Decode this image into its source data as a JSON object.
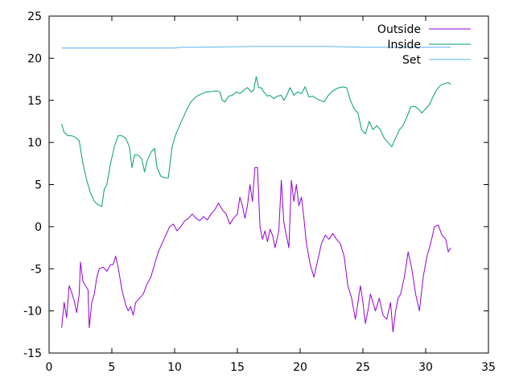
{
  "chart_data": {
    "type": "line",
    "title": "",
    "xlabel": "",
    "ylabel": "",
    "xlim": [
      0,
      35
    ],
    "ylim": [
      -15,
      25
    ],
    "xticks": [
      0,
      5,
      10,
      15,
      20,
      25,
      30,
      35
    ],
    "yticks": [
      -15,
      -10,
      -5,
      0,
      5,
      10,
      15,
      20,
      25
    ],
    "grid": false,
    "legend_position": "top-right",
    "series": [
      {
        "name": "Outside",
        "color": "#9400d3",
        "points": [
          [
            1.0,
            -12.0
          ],
          [
            1.2,
            -9.0
          ],
          [
            1.4,
            -10.8
          ],
          [
            1.6,
            -7.0
          ],
          [
            1.8,
            -7.8
          ],
          [
            2.0,
            -8.8
          ],
          [
            2.2,
            -10.2
          ],
          [
            2.4,
            -8.0
          ],
          [
            2.5,
            -4.2
          ],
          [
            2.7,
            -6.5
          ],
          [
            2.9,
            -7.0
          ],
          [
            3.1,
            -7.5
          ],
          [
            3.2,
            -12.0
          ],
          [
            3.4,
            -9.0
          ],
          [
            3.6,
            -8.0
          ],
          [
            3.8,
            -6.0
          ],
          [
            4.0,
            -5.0
          ],
          [
            4.3,
            -4.8
          ],
          [
            4.6,
            -5.3
          ],
          [
            4.9,
            -4.5
          ],
          [
            5.1,
            -4.5
          ],
          [
            5.3,
            -3.5
          ],
          [
            5.5,
            -4.8
          ],
          [
            5.8,
            -7.5
          ],
          [
            6.1,
            -9.3
          ],
          [
            6.3,
            -10.0
          ],
          [
            6.5,
            -9.5
          ],
          [
            6.7,
            -10.5
          ],
          [
            6.9,
            -9.0
          ],
          [
            7.2,
            -8.5
          ],
          [
            7.5,
            -8.0
          ],
          [
            7.8,
            -6.8
          ],
          [
            8.1,
            -6.0
          ],
          [
            8.4,
            -4.5
          ],
          [
            8.7,
            -3.0
          ],
          [
            9.0,
            -2.0
          ],
          [
            9.3,
            -1.0
          ],
          [
            9.6,
            0.0
          ],
          [
            9.9,
            0.3
          ],
          [
            10.2,
            -0.5
          ],
          [
            10.5,
            0.0
          ],
          [
            10.8,
            0.7
          ],
          [
            11.1,
            1.0
          ],
          [
            11.4,
            1.5
          ],
          [
            11.7,
            1.0
          ],
          [
            12.0,
            0.7
          ],
          [
            12.3,
            1.2
          ],
          [
            12.6,
            0.8
          ],
          [
            12.9,
            1.5
          ],
          [
            13.2,
            2.0
          ],
          [
            13.5,
            2.8
          ],
          [
            13.8,
            2.0
          ],
          [
            14.1,
            1.5
          ],
          [
            14.4,
            0.3
          ],
          [
            14.7,
            1.0
          ],
          [
            15.0,
            1.5
          ],
          [
            15.2,
            3.5
          ],
          [
            15.4,
            2.5
          ],
          [
            15.6,
            1.0
          ],
          [
            15.8,
            2.5
          ],
          [
            16.0,
            5.0
          ],
          [
            16.2,
            3.0
          ],
          [
            16.4,
            7.0
          ],
          [
            16.6,
            7.0
          ],
          [
            16.8,
            0.0
          ],
          [
            17.0,
            -1.5
          ],
          [
            17.2,
            -0.5
          ],
          [
            17.4,
            -1.8
          ],
          [
            17.6,
            -0.3
          ],
          [
            17.8,
            -1.0
          ],
          [
            18.0,
            -2.5
          ],
          [
            18.3,
            -0.5
          ],
          [
            18.5,
            5.5
          ],
          [
            18.7,
            0.5
          ],
          [
            18.9,
            -1.0
          ],
          [
            19.1,
            -2.5
          ],
          [
            19.3,
            5.5
          ],
          [
            19.5,
            3.0
          ],
          [
            19.7,
            5.0
          ],
          [
            19.9,
            2.5
          ],
          [
            20.1,
            3.5
          ],
          [
            20.3,
            1.0
          ],
          [
            20.5,
            -2.0
          ],
          [
            20.8,
            -4.5
          ],
          [
            21.1,
            -6.0
          ],
          [
            21.4,
            -4.0
          ],
          [
            21.7,
            -2.0
          ],
          [
            22.0,
            -1.0
          ],
          [
            22.3,
            -1.5
          ],
          [
            22.6,
            -0.8
          ],
          [
            22.9,
            -1.5
          ],
          [
            23.2,
            -2.0
          ],
          [
            23.5,
            -3.5
          ],
          [
            23.8,
            -7.0
          ],
          [
            24.1,
            -8.5
          ],
          [
            24.4,
            -11.0
          ],
          [
            24.6,
            -9.0
          ],
          [
            24.8,
            -7.0
          ],
          [
            25.0,
            -9.0
          ],
          [
            25.2,
            -11.5
          ],
          [
            25.4,
            -10.0
          ],
          [
            25.6,
            -8.0
          ],
          [
            25.8,
            -9.0
          ],
          [
            26.0,
            -10.0
          ],
          [
            26.3,
            -8.5
          ],
          [
            26.6,
            -10.5
          ],
          [
            26.9,
            -11.0
          ],
          [
            27.2,
            -9.0
          ],
          [
            27.4,
            -12.5
          ],
          [
            27.6,
            -10.0
          ],
          [
            27.8,
            -8.5
          ],
          [
            28.0,
            -8.0
          ],
          [
            28.3,
            -6.0
          ],
          [
            28.6,
            -3.0
          ],
          [
            28.9,
            -5.0
          ],
          [
            29.2,
            -8.0
          ],
          [
            29.5,
            -10.0
          ],
          [
            29.8,
            -6.0
          ],
          [
            30.1,
            -3.5
          ],
          [
            30.4,
            -2.0
          ],
          [
            30.7,
            0.0
          ],
          [
            31.0,
            0.2
          ],
          [
            31.3,
            -1.0
          ],
          [
            31.6,
            -1.5
          ],
          [
            31.8,
            -3.0
          ],
          [
            32.0,
            -2.5
          ]
        ]
      },
      {
        "name": "Inside",
        "color": "#009e73",
        "points": [
          [
            1.0,
            12.2
          ],
          [
            1.2,
            11.2
          ],
          [
            1.5,
            10.8
          ],
          [
            1.8,
            10.8
          ],
          [
            2.1,
            10.6
          ],
          [
            2.4,
            10.2
          ],
          [
            2.7,
            7.5
          ],
          [
            3.0,
            5.5
          ],
          [
            3.3,
            4.0
          ],
          [
            3.6,
            3.0
          ],
          [
            3.9,
            2.6
          ],
          [
            4.2,
            2.4
          ],
          [
            4.4,
            4.5
          ],
          [
            4.6,
            5.0
          ],
          [
            4.9,
            7.5
          ],
          [
            5.2,
            9.5
          ],
          [
            5.5,
            10.8
          ],
          [
            5.8,
            10.8
          ],
          [
            6.1,
            10.5
          ],
          [
            6.4,
            9.5
          ],
          [
            6.6,
            7.0
          ],
          [
            6.8,
            8.5
          ],
          [
            7.1,
            8.5
          ],
          [
            7.4,
            8.0
          ],
          [
            7.6,
            6.5
          ],
          [
            7.8,
            7.8
          ],
          [
            8.1,
            8.8
          ],
          [
            8.4,
            9.3
          ],
          [
            8.6,
            7.0
          ],
          [
            8.9,
            6.0
          ],
          [
            9.2,
            5.8
          ],
          [
            9.5,
            5.8
          ],
          [
            9.8,
            9.5
          ],
          [
            10.1,
            11.0
          ],
          [
            10.4,
            12.0
          ],
          [
            10.7,
            13.0
          ],
          [
            11.0,
            14.0
          ],
          [
            11.3,
            14.8
          ],
          [
            11.6,
            15.3
          ],
          [
            11.9,
            15.6
          ],
          [
            12.2,
            15.8
          ],
          [
            12.5,
            16.0
          ],
          [
            12.8,
            16.0
          ],
          [
            13.1,
            16.1
          ],
          [
            13.4,
            16.1
          ],
          [
            13.6,
            16.0
          ],
          [
            13.8,
            15.0
          ],
          [
            14.0,
            14.8
          ],
          [
            14.3,
            15.5
          ],
          [
            14.6,
            15.6
          ],
          [
            14.9,
            16.0
          ],
          [
            15.2,
            15.8
          ],
          [
            15.5,
            16.2
          ],
          [
            15.8,
            16.5
          ],
          [
            16.1,
            16.0
          ],
          [
            16.3,
            16.2
          ],
          [
            16.5,
            17.8
          ],
          [
            16.7,
            16.5
          ],
          [
            16.9,
            16.5
          ],
          [
            17.1,
            16.0
          ],
          [
            17.4,
            15.5
          ],
          [
            17.6,
            15.6
          ],
          [
            17.9,
            15.2
          ],
          [
            18.2,
            15.5
          ],
          [
            18.5,
            15.6
          ],
          [
            18.7,
            15.0
          ],
          [
            18.9,
            15.5
          ],
          [
            19.2,
            16.5
          ],
          [
            19.5,
            15.6
          ],
          [
            19.8,
            16.0
          ],
          [
            20.1,
            15.8
          ],
          [
            20.4,
            16.6
          ],
          [
            20.7,
            15.4
          ],
          [
            21.0,
            15.5
          ],
          [
            21.3,
            15.2
          ],
          [
            21.6,
            15.0
          ],
          [
            21.9,
            14.8
          ],
          [
            22.2,
            15.5
          ],
          [
            22.5,
            16.0
          ],
          [
            22.8,
            16.3
          ],
          [
            23.1,
            16.5
          ],
          [
            23.4,
            16.6
          ],
          [
            23.7,
            16.5
          ],
          [
            24.0,
            15.0
          ],
          [
            24.3,
            14.0
          ],
          [
            24.6,
            13.5
          ],
          [
            24.9,
            11.5
          ],
          [
            25.2,
            11.0
          ],
          [
            25.5,
            12.5
          ],
          [
            25.8,
            11.5
          ],
          [
            26.1,
            12.0
          ],
          [
            26.4,
            11.5
          ],
          [
            26.7,
            10.5
          ],
          [
            27.0,
            10.0
          ],
          [
            27.3,
            9.5
          ],
          [
            27.6,
            10.5
          ],
          [
            27.9,
            11.5
          ],
          [
            28.2,
            12.0
          ],
          [
            28.5,
            13.0
          ],
          [
            28.8,
            14.2
          ],
          [
            29.1,
            14.3
          ],
          [
            29.4,
            14.0
          ],
          [
            29.7,
            13.5
          ],
          [
            30.0,
            14.0
          ],
          [
            30.3,
            14.5
          ],
          [
            30.6,
            15.5
          ],
          [
            30.9,
            16.3
          ],
          [
            31.2,
            16.8
          ],
          [
            31.5,
            17.0
          ],
          [
            31.8,
            17.1
          ],
          [
            32.0,
            16.9
          ]
        ]
      },
      {
        "name": "Set",
        "color": "#56b4e9",
        "points": [
          [
            1.0,
            21.2
          ],
          [
            10.0,
            21.2
          ],
          [
            10.5,
            21.3
          ],
          [
            11.5,
            21.3
          ],
          [
            16.5,
            21.4
          ],
          [
            22.0,
            21.4
          ],
          [
            25.0,
            21.3
          ],
          [
            31.0,
            21.3
          ],
          [
            32.0,
            21.3
          ]
        ]
      }
    ]
  }
}
